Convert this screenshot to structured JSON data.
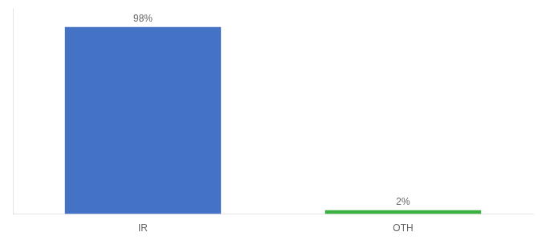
{
  "chart_data": {
    "type": "bar",
    "categories": [
      "IR",
      "OTH"
    ],
    "values": [
      98,
      2
    ],
    "value_labels": [
      "98%",
      "2%"
    ],
    "colors": [
      "#4472C4",
      "#3CB043"
    ],
    "ylim": [
      0,
      108
    ],
    "data_labels": true,
    "tick_labels": "x",
    "grid": false
  }
}
